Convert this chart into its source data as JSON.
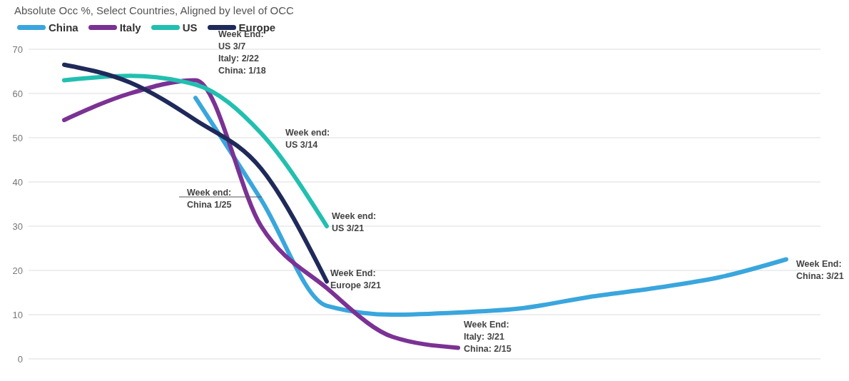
{
  "chart_data": {
    "type": "line",
    "title": "Absolute Occ %, Select Countries, Aligned by level of OCC",
    "categories": [
      null,
      null,
      null,
      null,
      null,
      null,
      null,
      null,
      null,
      null,
      null,
      null
    ],
    "series": [
      {
        "name": "China",
        "color": "#3aa6dd",
        "values": [
          null,
          null,
          59,
          36,
          12,
          10,
          10.5,
          11.5,
          14,
          16,
          18.5,
          22.5
        ]
      },
      {
        "name": "Italy",
        "color": "#7b3294",
        "values": [
          54,
          60,
          63,
          30,
          16,
          5,
          2.5,
          null,
          null,
          null,
          null,
          null
        ]
      },
      {
        "name": "US",
        "color": "#22bfb0",
        "values": [
          63,
          64,
          62,
          51,
          30,
          null,
          null,
          null,
          null,
          null,
          null,
          null
        ]
      },
      {
        "name": "Europe",
        "color": "#1f2a5a",
        "values": [
          66.5,
          62.5,
          54,
          43,
          17.5,
          null,
          null,
          null,
          null,
          null,
          null,
          null
        ]
      }
    ],
    "ylim": [
      0,
      70
    ],
    "yticks": [
      0,
      10,
      20,
      30,
      40,
      50,
      60,
      70
    ],
    "grid": "y",
    "legend": "top left",
    "marker": "none",
    "line_style": "solid",
    "annotations": [
      "Week End:\nUS 3/7\nItaly: 2/22\nChina: 1/18",
      "Week end:\nUS 3/14",
      "Week end:\nChina 1/25",
      "Week end:\nUS 3/21",
      "Week End:\nEurope 3/21",
      "Week End:\nItaly: 3/21\nChina: 2/15",
      "Week End:\nChina: 3/21"
    ]
  }
}
